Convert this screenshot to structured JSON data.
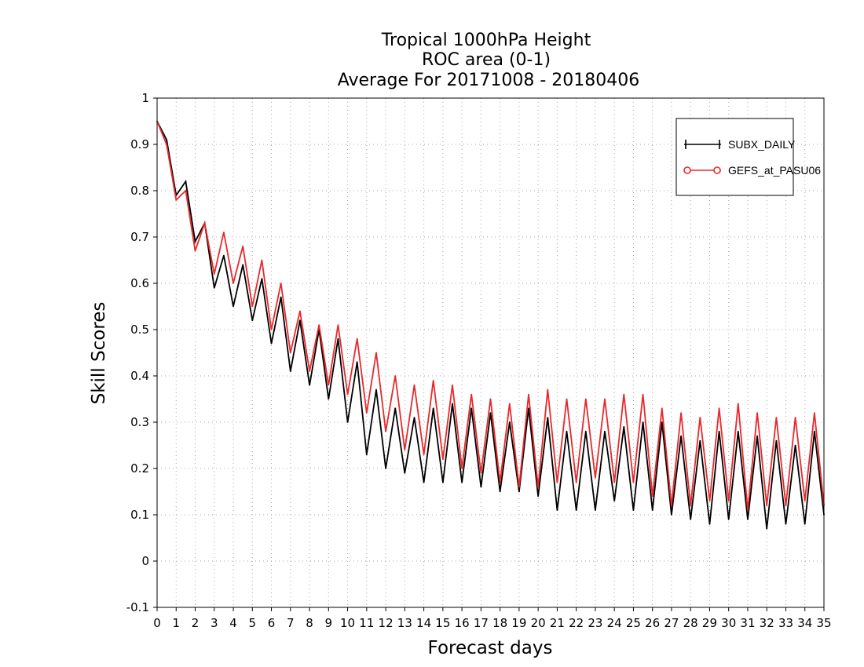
{
  "chart_data": {
    "type": "line",
    "title": [
      "Tropical 1000hPa Height",
      "ROC area (0-1)",
      "Average For 20171008 - 20180406"
    ],
    "xlabel": "Forecast days",
    "ylabel": "Skill Scores",
    "xlim": [
      0,
      35
    ],
    "ylim": [
      -0.1,
      1
    ],
    "x_ticks": [
      "0",
      "1",
      "2",
      "3",
      "4",
      "5",
      "6",
      "7",
      "8",
      "9",
      "10",
      "11",
      "12",
      "13",
      "14",
      "15",
      "16",
      "17",
      "18",
      "19",
      "20",
      "21",
      "22",
      "23",
      "24",
      "25",
      "26",
      "27",
      "28",
      "29",
      "30",
      "31",
      "32",
      "33",
      "34",
      "35"
    ],
    "y_ticks": [
      "-0.1",
      "0",
      "0.1",
      "0.2",
      "0.3",
      "0.4",
      "0.5",
      "0.6",
      "0.7",
      "0.8",
      "0.9",
      "1"
    ],
    "grid": true,
    "legend_position": "top-right",
    "x": [
      0,
      0.5,
      1,
      1.5,
      2,
      2.5,
      3,
      3.5,
      4,
      4.5,
      5,
      5.5,
      6,
      6.5,
      7,
      7.5,
      8,
      8.5,
      9,
      9.5,
      10,
      10.5,
      11,
      11.5,
      12,
      12.5,
      13,
      13.5,
      14,
      14.5,
      15,
      15.5,
      16,
      16.5,
      17,
      17.5,
      18,
      18.5,
      19,
      19.5,
      20,
      20.5,
      21,
      21.5,
      22,
      22.5,
      23,
      23.5,
      24,
      24.5,
      25,
      25.5,
      26,
      26.5,
      27,
      27.5,
      28,
      28.5,
      29,
      29.5,
      30,
      30.5,
      31,
      31.5,
      32,
      32.5,
      33,
      33.5,
      34,
      34.5,
      35
    ],
    "series": [
      {
        "name": "SUBX_DAILY",
        "color": "#000000",
        "marker": "plus",
        "values": [
          0.95,
          0.91,
          0.79,
          0.82,
          0.69,
          0.73,
          0.59,
          0.66,
          0.55,
          0.64,
          0.52,
          0.61,
          0.47,
          0.57,
          0.41,
          0.52,
          0.38,
          0.5,
          0.35,
          0.48,
          0.3,
          0.43,
          0.23,
          0.37,
          0.2,
          0.33,
          0.19,
          0.31,
          0.17,
          0.33,
          0.17,
          0.34,
          0.17,
          0.33,
          0.16,
          0.32,
          0.15,
          0.3,
          0.15,
          0.33,
          0.14,
          0.31,
          0.11,
          0.28,
          0.11,
          0.28,
          0.11,
          0.28,
          0.13,
          0.29,
          0.11,
          0.3,
          0.11,
          0.3,
          0.1,
          0.27,
          0.09,
          0.26,
          0.08,
          0.28,
          0.09,
          0.28,
          0.09,
          0.27,
          0.07,
          0.26,
          0.08,
          0.25,
          0.08,
          0.28,
          0.1
        ]
      },
      {
        "name": "GEFS_at_PASU06",
        "color": "#e8292b",
        "marker": "circle",
        "values": [
          0.95,
          0.9,
          0.78,
          0.8,
          0.67,
          0.73,
          0.62,
          0.71,
          0.6,
          0.68,
          0.55,
          0.65,
          0.5,
          0.6,
          0.45,
          0.54,
          0.41,
          0.51,
          0.38,
          0.51,
          0.36,
          0.48,
          0.32,
          0.45,
          0.28,
          0.4,
          0.24,
          0.38,
          0.23,
          0.39,
          0.22,
          0.38,
          0.2,
          0.36,
          0.19,
          0.35,
          0.17,
          0.34,
          0.16,
          0.36,
          0.16,
          0.37,
          0.17,
          0.35,
          0.17,
          0.35,
          0.18,
          0.35,
          0.17,
          0.36,
          0.17,
          0.36,
          0.14,
          0.33,
          0.12,
          0.32,
          0.12,
          0.31,
          0.13,
          0.33,
          0.13,
          0.34,
          0.11,
          0.32,
          0.12,
          0.31,
          0.12,
          0.31,
          0.13,
          0.32,
          0.12
        ]
      }
    ]
  }
}
